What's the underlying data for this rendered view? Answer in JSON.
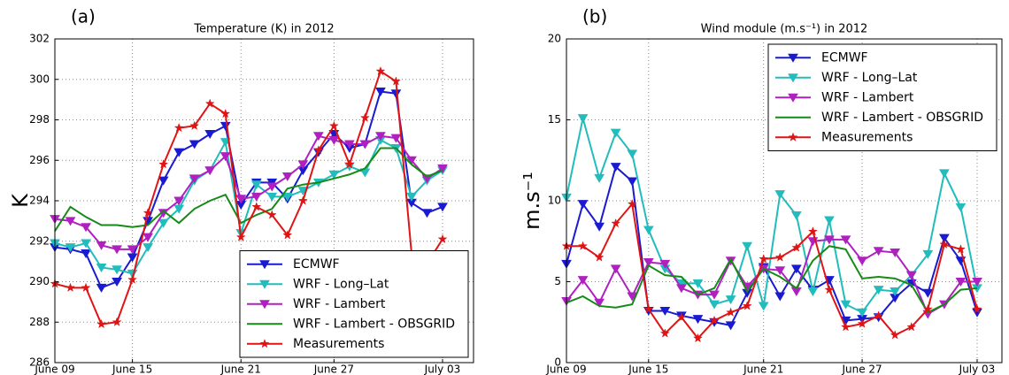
{
  "chart_data": [
    {
      "type": "line",
      "panel_label": "(a)",
      "title": "Temperature (K) in 2012",
      "y_label": "K",
      "categories": [
        "June 09",
        null,
        null,
        null,
        null,
        "June 15",
        null,
        null,
        null,
        null,
        null,
        null,
        "June 21",
        null,
        null,
        null,
        null,
        null,
        "June 27",
        null,
        null,
        null,
        null,
        null,
        null,
        "July 03"
      ],
      "ylim": [
        286,
        302
      ],
      "yticks": [
        286,
        288,
        290,
        292,
        294,
        296,
        298,
        300,
        302
      ],
      "grid": true,
      "legend": "lower right",
      "series": [
        {
          "name": "ECMWF",
          "color": "#1a1ad0",
          "marker": "triangle-down",
          "values": [
            291.7,
            291.6,
            291.4,
            289.7,
            290.0,
            291.2,
            293.0,
            295.0,
            296.4,
            296.8,
            297.3,
            297.7,
            293.8,
            294.9,
            294.9,
            294.1,
            295.5,
            296.4,
            297.3,
            296.6,
            296.8,
            299.4,
            299.3,
            293.9,
            293.4,
            293.7
          ]
        },
        {
          "name": "WRF - Long–Lat",
          "color": "#22bcbc",
          "marker": "triangle-down",
          "values": [
            291.9,
            291.7,
            291.9,
            290.7,
            290.6,
            290.4,
            291.7,
            292.9,
            293.6,
            295.0,
            295.5,
            296.9,
            292.4,
            294.8,
            294.2,
            294.2,
            294.5,
            294.9,
            295.3,
            295.7,
            295.4,
            297.0,
            296.6,
            294.2,
            295.0,
            295.5
          ]
        },
        {
          "name": "WRF - Lambert",
          "color": "#b020c0",
          "marker": "triangle-down",
          "values": [
            293.1,
            293.0,
            292.7,
            291.8,
            291.6,
            291.6,
            292.2,
            293.4,
            294.0,
            295.1,
            295.5,
            296.2,
            294.1,
            294.2,
            294.7,
            295.2,
            295.8,
            297.2,
            297.0,
            296.8,
            296.8,
            297.2,
            297.1,
            296.0,
            295.1,
            295.6
          ]
        },
        {
          "name": "WRF - Lambert - OBSGRID",
          "color": "#168a16",
          "values": [
            292.5,
            293.7,
            293.2,
            292.8,
            292.8,
            292.7,
            292.8,
            293.5,
            292.9,
            293.6,
            294.0,
            294.3,
            292.9,
            293.3,
            293.6,
            294.6,
            294.8,
            294.9,
            295.1,
            295.3,
            295.6,
            296.6,
            296.6,
            295.8,
            295.2,
            295.5
          ]
        },
        {
          "name": "Measurements",
          "color": "#e01414",
          "marker": "star",
          "values": [
            289.9,
            289.7,
            289.7,
            287.9,
            288.0,
            290.1,
            293.4,
            295.8,
            297.6,
            297.7,
            298.8,
            298.3,
            292.2,
            293.7,
            293.3,
            292.3,
            294.0,
            296.5,
            297.7,
            295.8,
            298.1,
            300.4,
            299.9,
            291.4,
            290.9,
            292.1
          ]
        }
      ]
    },
    {
      "type": "line",
      "panel_label": "(b)",
      "title": "Wind module (m.s⁻¹) in 2012",
      "y_label": "m.s⁻¹",
      "categories": [
        "June 09",
        null,
        null,
        null,
        null,
        "June 15",
        null,
        null,
        null,
        null,
        null,
        null,
        "June 21",
        null,
        null,
        null,
        null,
        null,
        "June 27",
        null,
        null,
        null,
        null,
        null,
        null,
        "July 03"
      ],
      "ylim": [
        0,
        20
      ],
      "yticks": [
        0,
        5,
        10,
        15,
        20
      ],
      "grid": true,
      "legend": "upper right",
      "series": [
        {
          "name": "ECMWF",
          "color": "#1a1ad0",
          "marker": "triangle-down",
          "values": [
            6.1,
            9.8,
            8.4,
            12.1,
            11.2,
            3.2,
            3.2,
            2.9,
            2.7,
            2.5,
            2.3,
            4.3,
            5.9,
            4.1,
            5.8,
            4.5,
            5.1,
            2.6,
            2.7,
            2.8,
            4.0,
            4.9,
            4.3,
            7.7,
            6.3,
            3.1
          ]
        },
        {
          "name": "WRF - Long–Lat",
          "color": "#22bcbc",
          "marker": "triangle-down",
          "values": [
            10.2,
            15.1,
            11.4,
            14.2,
            12.9,
            8.2,
            5.8,
            4.9,
            4.9,
            3.6,
            3.9,
            7.2,
            3.5,
            10.4,
            9.1,
            4.4,
            8.8,
            3.6,
            3.1,
            4.5,
            4.4,
            5.4,
            6.7,
            11.7,
            9.6,
            4.6
          ]
        },
        {
          "name": "WRF - Lambert",
          "color": "#b020c0",
          "marker": "triangle-down",
          "values": [
            3.8,
            5.1,
            3.7,
            5.8,
            4.1,
            6.2,
            6.1,
            4.6,
            4.2,
            4.2,
            6.3,
            4.7,
            5.8,
            5.7,
            4.4,
            7.5,
            7.6,
            7.6,
            6.3,
            6.9,
            6.8,
            5.4,
            3.0,
            3.6,
            5.0,
            5.0
          ]
        },
        {
          "name": "WRF - Lambert - OBSGRID",
          "color": "#168a16",
          "values": [
            3.7,
            4.1,
            3.5,
            3.4,
            3.6,
            6.0,
            5.4,
            5.3,
            4.2,
            4.6,
            6.4,
            4.4,
            5.8,
            5.3,
            4.6,
            6.3,
            7.2,
            7.0,
            5.2,
            5.3,
            5.2,
            4.8,
            3.1,
            3.6,
            4.5,
            4.6
          ]
        },
        {
          "name": "Measurements",
          "color": "#e01414",
          "marker": "star",
          "values": [
            7.2,
            7.2,
            6.5,
            8.6,
            9.8,
            3.3,
            1.8,
            2.8,
            1.5,
            2.6,
            3.1,
            3.5,
            6.4,
            6.5,
            7.1,
            8.1,
            4.5,
            2.2,
            2.4,
            2.9,
            1.7,
            2.2,
            3.3,
            7.3,
            7.0,
            3.3
          ]
        }
      ]
    }
  ]
}
